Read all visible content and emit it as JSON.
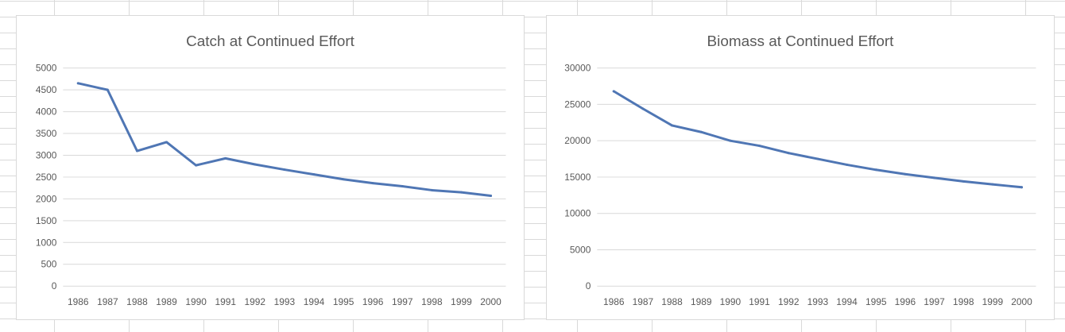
{
  "chart_data": [
    {
      "type": "line",
      "title": "Catch at Continued Effort",
      "xlabel": "",
      "ylabel": "",
      "x": [
        "1986",
        "1987",
        "1988",
        "1989",
        "1990",
        "1991",
        "1992",
        "1993",
        "1994",
        "1995",
        "1996",
        "1997",
        "1998",
        "1999",
        "2000"
      ],
      "yticks": [
        0,
        500,
        1000,
        1500,
        2000,
        2500,
        3000,
        3500,
        4000,
        4500,
        5000
      ],
      "ylim": [
        0,
        5000
      ],
      "grid": true,
      "legend": "none",
      "series": [
        {
          "color": "#4f76b4",
          "values": [
            4650,
            4500,
            3100,
            3300,
            2770,
            2930,
            2790,
            2670,
            2560,
            2450,
            2360,
            2290,
            2200,
            2150,
            2070
          ]
        }
      ]
    },
    {
      "type": "line",
      "title": "Biomass at Continued Effort",
      "xlabel": "",
      "ylabel": "",
      "x": [
        "1986",
        "1987",
        "1988",
        "1989",
        "1990",
        "1991",
        "1992",
        "1993",
        "1994",
        "1995",
        "1996",
        "1997",
        "1998",
        "1999",
        "2000"
      ],
      "yticks": [
        0,
        5000,
        10000,
        15000,
        20000,
        25000,
        30000
      ],
      "ylim": [
        0,
        30000
      ],
      "grid": true,
      "legend": "none",
      "series": [
        {
          "color": "#4f76b4",
          "values": [
            26800,
            24400,
            22100,
            21200,
            20000,
            19300,
            18300,
            17500,
            16700,
            16000,
            15400,
            14900,
            14400,
            14000,
            13600
          ]
        }
      ]
    }
  ]
}
